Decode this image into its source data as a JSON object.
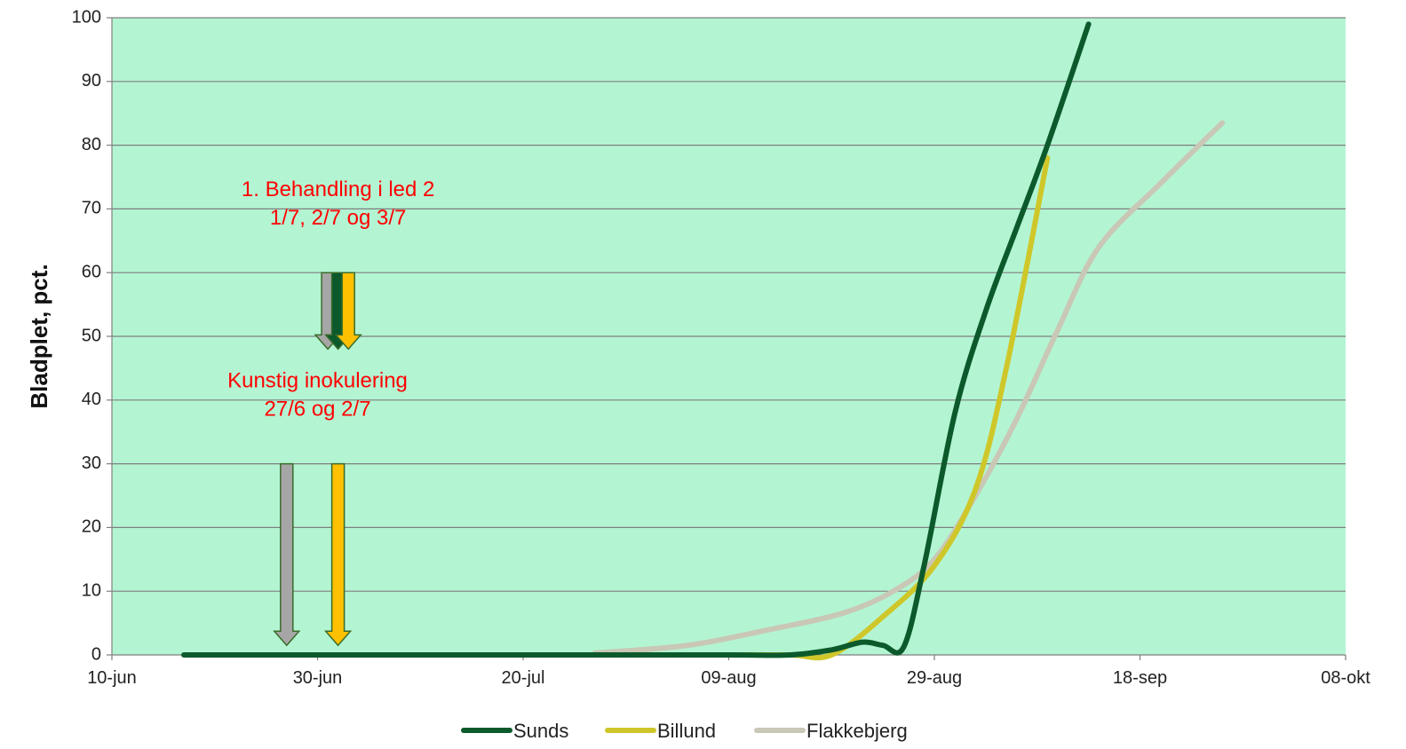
{
  "chart_data": {
    "type": "line",
    "ylabel": "Bladplet, pct.",
    "xlabel": "",
    "ylim": [
      0,
      100
    ],
    "yticks": [
      0,
      10,
      20,
      30,
      40,
      50,
      60,
      70,
      80,
      90,
      100
    ],
    "xlim": [
      "2013-06-10",
      "2013-10-08"
    ],
    "xticks": [
      {
        "date": "2013-06-10",
        "label": "10-jun"
      },
      {
        "date": "2013-06-30",
        "label": "30-jun"
      },
      {
        "date": "2013-07-20",
        "label": "20-jul"
      },
      {
        "date": "2013-08-09",
        "label": "09-aug"
      },
      {
        "date": "2013-08-29",
        "label": "29-aug"
      },
      {
        "date": "2013-09-18",
        "label": "18-sep"
      },
      {
        "date": "2013-10-08",
        "label": "08-okt"
      }
    ],
    "grid": true,
    "plot_background": "#b3f5d3",
    "legend_position": "bottom",
    "series": [
      {
        "name": "Sunds",
        "color": "#0c5a2c",
        "points": [
          [
            "2013-06-17",
            0
          ],
          [
            "2013-07-20",
            0
          ],
          [
            "2013-08-09",
            0
          ],
          [
            "2013-08-15",
            0
          ],
          [
            "2013-08-19",
            0.8
          ],
          [
            "2013-08-22",
            2
          ],
          [
            "2013-08-24",
            1.5
          ],
          [
            "2013-08-26",
            1.2
          ],
          [
            "2013-08-28",
            14
          ],
          [
            "2013-08-31",
            38
          ],
          [
            "2013-09-03",
            54
          ],
          [
            "2013-09-06",
            67
          ],
          [
            "2013-09-09",
            80
          ],
          [
            "2013-09-13",
            99
          ]
        ]
      },
      {
        "name": "Billund",
        "color": "#cfc72a",
        "points": [
          [
            "2013-06-18",
            0
          ],
          [
            "2013-07-20",
            0
          ],
          [
            "2013-08-09",
            0
          ],
          [
            "2013-08-15",
            0
          ],
          [
            "2013-08-19",
            0
          ],
          [
            "2013-08-24",
            6
          ],
          [
            "2013-08-29",
            14
          ],
          [
            "2013-09-02",
            26
          ],
          [
            "2013-09-05",
            45
          ],
          [
            "2013-09-09",
            78
          ]
        ]
      },
      {
        "name": "Flakkebjerg",
        "color": "#c9c7b5",
        "points": [
          [
            "2013-07-27",
            0.3
          ],
          [
            "2013-08-05",
            1.5
          ],
          [
            "2013-08-13",
            4
          ],
          [
            "2013-08-20",
            6.5
          ],
          [
            "2013-08-25",
            10
          ],
          [
            "2013-08-29",
            15
          ],
          [
            "2013-09-02",
            25
          ],
          [
            "2013-09-06",
            37
          ],
          [
            "2013-09-10",
            51
          ],
          [
            "2013-09-14",
            64
          ],
          [
            "2013-09-20",
            74
          ],
          [
            "2013-09-26",
            83.5
          ]
        ]
      }
    ],
    "annotations": [
      {
        "lines": [
          "1. Behandling i led 2",
          "1/7, 2/7 og 3/7"
        ],
        "date": "2013-07-02",
        "y": 72,
        "color": "#ff0000"
      },
      {
        "lines": [
          "Kunstig inokulering",
          "27/6 og 2/7"
        ],
        "date": "2013-06-30",
        "y": 42,
        "color": "#ff0000"
      }
    ],
    "arrows": [
      {
        "date": "2013-07-01",
        "y_from": 60,
        "y_to": 48,
        "color": "#a6a6a6"
      },
      {
        "date": "2013-07-02",
        "y_from": 60,
        "y_to": 48,
        "color": "#0c5a2c"
      },
      {
        "date": "2013-07-03",
        "y_from": 60,
        "y_to": 48,
        "color": "#ffc000"
      },
      {
        "date": "2013-06-27",
        "y_from": 30,
        "y_to": 1.5,
        "color": "#a6a6a6"
      },
      {
        "date": "2013-07-02",
        "y_from": 30,
        "y_to": 1.5,
        "color": "#ffc000"
      }
    ]
  }
}
